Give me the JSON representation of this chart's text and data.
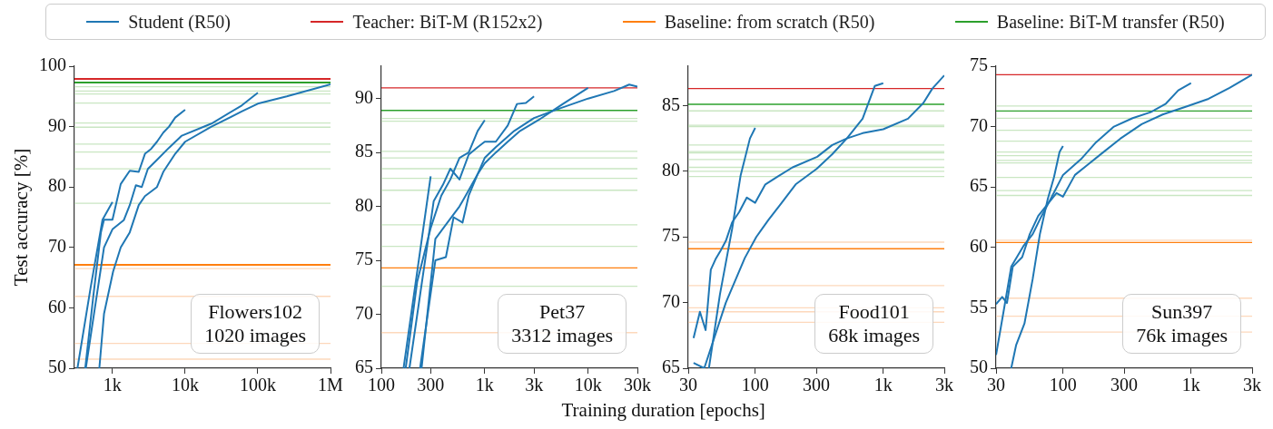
{
  "chart_data": [
    {
      "type": "line",
      "ylabel": "Test accuracy [%]",
      "legend": "top",
      "log": "x",
      "marker": "none",
      "line_style": "solid",
      "grid": false,
      "xlim": [
        300,
        1000000
      ],
      "xticks": [
        {
          "value": 1000,
          "label": "1k"
        },
        {
          "value": 10000,
          "label": "10k"
        },
        {
          "value": 100000,
          "label": "100k"
        },
        {
          "value": 1000000,
          "label": "1M"
        }
      ],
      "ylim": [
        50,
        100
      ],
      "yticks": [
        50,
        60,
        70,
        80,
        90,
        100
      ],
      "series": [
        {
          "name": "Student (R50)",
          "color": "#1f77b4",
          "x": [
            330,
            500,
            730,
            1000
          ],
          "values": [
            50,
            63.3,
            74.6,
            77.5
          ]
        },
        {
          "color": "#1f77b4",
          "x": [
            422,
            546,
            694,
            765,
            1000,
            1300,
            1730,
            2300,
            2800,
            3400,
            4100,
            5000,
            6000,
            7300,
            10000
          ],
          "values": [
            50,
            62,
            72.5,
            74.6,
            74.6,
            80.5,
            82.7,
            82.5,
            85.5,
            86.3,
            87.5,
            89,
            90,
            91.5,
            92.8
          ]
        },
        {
          "color": "#1f77b4",
          "x": [
            430,
            765,
            1000,
            1430,
            1730,
            2100,
            2530,
            3070,
            4100,
            6000,
            9000,
            23000,
            60000,
            100000
          ],
          "values": [
            50,
            70,
            73,
            74.5,
            77,
            80.3,
            80,
            83,
            84.5,
            86.5,
            88.5,
            90.5,
            93.5,
            95.6
          ]
        },
        {
          "color": "#1f77b4",
          "x": [
            660,
            765,
            1020,
            1300,
            1730,
            2300,
            2800,
            4100,
            5000,
            7300,
            10000,
            23000,
            60000,
            100000,
            250000,
            1000000
          ],
          "values": [
            50,
            59,
            66,
            70,
            72.5,
            77,
            78.5,
            80,
            82.5,
            85.5,
            87.5,
            90,
            92.5,
            93.8,
            95,
            97
          ]
        }
      ],
      "ref_lines": [
        {
          "axis": "y",
          "value": 96.6,
          "color": "#c9e6c2"
        },
        {
          "axis": "y",
          "value": 95.9,
          "color": "#c9e6c2"
        },
        {
          "axis": "y",
          "value": 95.4,
          "color": "#c9e6c2"
        },
        {
          "axis": "y",
          "value": 93.9,
          "color": "#c9e6c2"
        },
        {
          "axis": "y",
          "value": 90.6,
          "color": "#c9e6c2"
        },
        {
          "axis": "y",
          "value": 89.9,
          "color": "#c9e6c2"
        },
        {
          "axis": "y",
          "value": 87.1,
          "color": "#c9e6c2"
        },
        {
          "axis": "y",
          "value": 85.8,
          "color": "#c9e6c2"
        },
        {
          "axis": "y",
          "value": 83,
          "color": "#c9e6c2"
        },
        {
          "axis": "y",
          "value": 77.3,
          "color": "#c9e6c2"
        },
        {
          "axis": "y",
          "value": 66.5,
          "color": "#fdd8bb"
        },
        {
          "axis": "y",
          "value": 61.9,
          "color": "#fdd8bb"
        },
        {
          "axis": "y",
          "value": 54.1,
          "color": "#fdd8bb"
        },
        {
          "axis": "y",
          "value": 51.5,
          "color": "#fdd8bb"
        },
        {
          "axis": "y",
          "value": 97.9,
          "label": "Teacher: BiT-M (R152x2)",
          "color": "#d62728"
        },
        {
          "axis": "y",
          "value": 67.1,
          "label": "Baseline: from scratch (R50)",
          "color": "#ff7f0e"
        },
        {
          "axis": "y",
          "value": 97.3,
          "label": "Baseline: BiT-M transfer (R50)",
          "color": "#2ca02c"
        }
      ],
      "annotations": [
        "Flowers102\n1020 images"
      ]
    },
    {
      "type": "line",
      "xlabel": "Training duration [epochs]",
      "log": "x",
      "marker": "none",
      "line_style": "solid",
      "grid": false,
      "xlim": [
        100,
        30000
      ],
      "xticks": [
        100,
        300,
        {
          "value": 1000,
          "label": "1k"
        },
        {
          "value": 3000,
          "label": "3k"
        },
        {
          "value": 10000,
          "label": "10k"
        },
        {
          "value": 30000,
          "label": "30k"
        }
      ],
      "ylim": [
        65,
        93
      ],
      "yticks": [
        65,
        70,
        75,
        80,
        85,
        90
      ],
      "series": [
        {
          "color": "#1f77b4",
          "x": [
            164,
            300
          ],
          "values": [
            65,
            82.8
          ]
        },
        {
          "color": "#1f77b4",
          "x": [
            172,
            222,
            300,
            380,
            465,
            570,
            700,
            855,
            1000
          ],
          "values": [
            65,
            73,
            78,
            81,
            82.5,
            84.5,
            85,
            87,
            88
          ]
        },
        {
          "color": "#1f77b4",
          "x": [
            187,
            321,
            394,
            465,
            570,
            700,
            855,
            1000,
            1280,
            1670,
            2050,
            2500,
            3000
          ],
          "values": [
            65,
            80.5,
            82,
            83.5,
            82.5,
            84.8,
            85.5,
            86,
            86,
            87.5,
            89.5,
            89.6,
            90.2
          ]
        },
        {
          "color": "#1f77b4",
          "x": [
            237,
            333,
            421,
            500,
            610,
            700,
            855,
            1000,
            1280,
            1670,
            2200,
            3300,
            5700,
            10000
          ],
          "values": [
            65,
            75,
            75.3,
            79,
            78.5,
            81,
            83,
            84,
            85,
            86,
            87,
            88,
            89.5,
            91
          ]
        },
        {
          "color": "#1f77b4",
          "x": [
            245,
            333,
            436,
            570,
            700,
            855,
            1000,
            1280,
            1930,
            3000,
            5000,
            10000,
            17800,
            25000,
            30000
          ],
          "values": [
            65,
            77,
            78.5,
            80,
            81.5,
            83,
            84.5,
            85.5,
            87,
            88.2,
            89,
            90,
            90.7,
            91.3,
            91.1
          ]
        }
      ],
      "ref_lines": [
        {
          "axis": "y",
          "value": 88.15,
          "color": "#c9e6c2"
        },
        {
          "axis": "y",
          "value": 87.9,
          "color": "#c9e6c2"
        },
        {
          "axis": "y",
          "value": 85.1,
          "color": "#c9e6c2"
        },
        {
          "axis": "y",
          "value": 84.5,
          "color": "#c9e6c2"
        },
        {
          "axis": "y",
          "value": 83.5,
          "color": "#c9e6c2"
        },
        {
          "axis": "y",
          "value": 82.6,
          "color": "#c9e6c2"
        },
        {
          "axis": "y",
          "value": 81.5,
          "color": "#c9e6c2"
        },
        {
          "axis": "y",
          "value": 78.3,
          "color": "#c9e6c2"
        },
        {
          "axis": "y",
          "value": 76.3,
          "color": "#c9e6c2"
        },
        {
          "axis": "y",
          "value": 72.6,
          "color": "#c9e6c2"
        },
        {
          "axis": "y",
          "value": 68.3,
          "color": "#fdd8bb"
        },
        {
          "axis": "y",
          "value": 91,
          "color": "#d62728"
        },
        {
          "axis": "y",
          "value": 74.3,
          "color": "#ff7f0e"
        },
        {
          "axis": "y",
          "value": 88.9,
          "color": "#2ca02c"
        }
      ],
      "annotations": [
        "Pet37\n3312 images"
      ]
    },
    {
      "type": "line",
      "log": "x",
      "marker": "none",
      "line_style": "solid",
      "grid": false,
      "xlim": [
        30,
        3000
      ],
      "xticks": [
        30,
        100,
        300,
        {
          "value": 1000,
          "label": "1k"
        },
        {
          "value": 3000,
          "label": "3k"
        }
      ],
      "ylim": [
        65,
        88
      ],
      "yticks": [
        65,
        70,
        75,
        80,
        85
      ],
      "series": [
        {
          "color": "#1f77b4",
          "x": [
            43.5,
            53,
            66,
            77,
            91,
            100
          ],
          "values": [
            65,
            70.6,
            75.6,
            79.7,
            82.5,
            83.3
          ]
        },
        {
          "color": "#1f77b4",
          "x": [
            33,
            37,
            41,
            45,
            49,
            54,
            59,
            66,
            75,
            86,
            100,
            120,
            150,
            196,
            305,
            400,
            520,
            690,
            1000,
            1560,
            2060,
            2420,
            3000
          ],
          "values": [
            67.3,
            69.3,
            67.9,
            72.5,
            73.3,
            74,
            74.7,
            76.1,
            76.9,
            78,
            77.6,
            79,
            79.6,
            80.3,
            81.1,
            82,
            82.5,
            82.9,
            83.2,
            84,
            85.2,
            86.3,
            87.3
          ]
        },
        {
          "color": "#1f77b4",
          "x": [
            33,
            40,
            59,
            83,
            102,
            127,
            158,
            207,
            303,
            400,
            520,
            690,
            860,
            1000
          ],
          "values": [
            65.4,
            65,
            70,
            73.4,
            75,
            76.3,
            77.5,
            79,
            80.2,
            81.3,
            82.5,
            84,
            86.5,
            86.7
          ]
        }
      ],
      "ref_lines": [
        {
          "axis": "y",
          "value": 84.6,
          "color": "#c9e6c2"
        },
        {
          "axis": "y",
          "value": 83.5,
          "color": "#c9e6c2"
        },
        {
          "axis": "y",
          "value": 83.4,
          "color": "#c9e6c2"
        },
        {
          "axis": "y",
          "value": 82,
          "color": "#c9e6c2"
        },
        {
          "axis": "y",
          "value": 81.5,
          "color": "#c9e6c2"
        },
        {
          "axis": "y",
          "value": 81.4,
          "color": "#c9e6c2"
        },
        {
          "axis": "y",
          "value": 80.9,
          "color": "#c9e6c2"
        },
        {
          "axis": "y",
          "value": 80.3,
          "color": "#c9e6c2"
        },
        {
          "axis": "y",
          "value": 80,
          "color": "#c9e6c2"
        },
        {
          "axis": "y",
          "value": 79.6,
          "color": "#c9e6c2"
        },
        {
          "axis": "y",
          "value": 74.6,
          "color": "#fdd8bb"
        },
        {
          "axis": "y",
          "value": 71.3,
          "color": "#fdd8bb"
        },
        {
          "axis": "y",
          "value": 69.6,
          "color": "#fdd8bb"
        },
        {
          "axis": "y",
          "value": 69.3,
          "color": "#fdd8bb"
        },
        {
          "axis": "y",
          "value": 68.5,
          "color": "#fdd8bb"
        },
        {
          "axis": "y",
          "value": 86.3,
          "color": "#d62728"
        },
        {
          "axis": "y",
          "value": 74.1,
          "color": "#ff7f0e"
        },
        {
          "axis": "y",
          "value": 85.1,
          "color": "#2ca02c"
        }
      ],
      "annotations": [
        "Food101\n68k images"
      ]
    },
    {
      "type": "line",
      "log": "x",
      "marker": "none",
      "line_style": "solid",
      "grid": false,
      "xlim": [
        30,
        3000
      ],
      "xticks": [
        30,
        100,
        300,
        {
          "value": 1000,
          "label": "1k"
        },
        {
          "value": 3000,
          "label": "3k"
        }
      ],
      "ylim": [
        50,
        75
      ],
      "yticks": [
        50,
        55,
        60,
        65,
        70,
        75
      ],
      "series": [
        {
          "color": "#1f77b4",
          "x": [
            39.4,
            43,
            50,
            58,
            66,
            76,
            85,
            94,
            100
          ],
          "values": [
            50,
            51.9,
            53.7,
            57.4,
            61.1,
            64,
            65.8,
            67.9,
            68.4
          ]
        },
        {
          "color": "#1f77b4",
          "x": [
            30,
            34.6,
            39.4,
            49,
            58,
            68,
            80,
            100,
            138,
            181,
            250,
            350,
            485,
            636,
            795,
            1000
          ],
          "values": [
            51.1,
            54.9,
            58.4,
            60.1,
            61.1,
            62.6,
            64,
            66,
            67.3,
            68.7,
            70,
            70.7,
            71.2,
            71.9,
            73,
            73.6
          ]
        },
        {
          "color": "#1f77b4",
          "x": [
            30,
            33.5,
            36.5,
            40.5,
            48,
            55,
            64,
            76,
            89,
            100,
            124,
            154,
            202,
            280,
            412,
            600,
            940,
            1370,
            2000,
            3000
          ],
          "values": [
            55.3,
            55.9,
            55.4,
            58.4,
            59.2,
            61.1,
            62.6,
            63.6,
            64.5,
            64.2,
            66,
            66.8,
            67.8,
            69,
            70.2,
            71,
            71.7,
            72.3,
            73.2,
            74.3
          ]
        }
      ],
      "ref_lines": [
        {
          "axis": "y",
          "value": 71.7,
          "color": "#c9e6c2"
        },
        {
          "axis": "y",
          "value": 70.7,
          "color": "#c9e6c2"
        },
        {
          "axis": "y",
          "value": 69.7,
          "color": "#c9e6c2"
        },
        {
          "axis": "y",
          "value": 68.8,
          "color": "#c9e6c2"
        },
        {
          "axis": "y",
          "value": 67.9,
          "color": "#c9e6c2"
        },
        {
          "axis": "y",
          "value": 67.6,
          "color": "#c9e6c2"
        },
        {
          "axis": "y",
          "value": 67.2,
          "color": "#c9e6c2"
        },
        {
          "axis": "y",
          "value": 67,
          "color": "#c9e6c2"
        },
        {
          "axis": "y",
          "value": 65.8,
          "color": "#c9e6c2"
        },
        {
          "axis": "y",
          "value": 64.7,
          "color": "#c9e6c2"
        },
        {
          "axis": "y",
          "value": 64.3,
          "color": "#c9e6c2"
        },
        {
          "axis": "y",
          "value": 60.6,
          "color": "#fdd8bb"
        },
        {
          "axis": "y",
          "value": 55.8,
          "color": "#fdd8bb"
        },
        {
          "axis": "y",
          "value": 54.3,
          "color": "#fdd8bb"
        },
        {
          "axis": "y",
          "value": 53,
          "color": "#fdd8bb"
        },
        {
          "axis": "y",
          "value": 74.3,
          "color": "#d62728"
        },
        {
          "axis": "y",
          "value": 60.4,
          "color": "#ff7f0e"
        },
        {
          "axis": "y",
          "value": 71.3,
          "color": "#2ca02c"
        }
      ],
      "annotations": [
        "Sun397\n76k images"
      ]
    }
  ]
}
